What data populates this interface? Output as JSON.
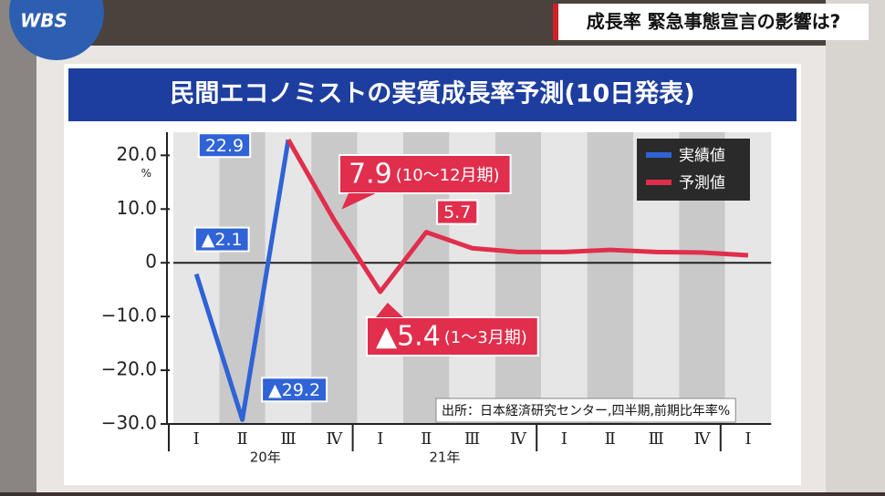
{
  "header": {
    "logo": "WBS",
    "headline": "成長率 緊急事態宣言の影響は?"
  },
  "chart_data": {
    "type": "line",
    "title": "民間エコノミストの実質成長率予測(10日発表)",
    "unit": "%",
    "source": "出所：日本経済研究センター,四半期,前期比年率%",
    "categories": [
      "Ⅰ",
      "Ⅱ",
      "Ⅲ",
      "Ⅳ",
      "Ⅰ",
      "Ⅱ",
      "Ⅲ",
      "Ⅳ",
      "Ⅰ",
      "Ⅱ",
      "Ⅲ",
      "Ⅳ",
      "Ⅰ"
    ],
    "year_labels": [
      "20年",
      "21年"
    ],
    "annotations": [
      "(10～12月期)",
      "(1～3月期)"
    ],
    "series": [
      {
        "name": "実績値",
        "color": "#2f63d6",
        "values": [
          -2.1,
          -29.2,
          22.9,
          null,
          null,
          null,
          null,
          null,
          null,
          null,
          null,
          null,
          null
        ],
        "value_labels": [
          "▲2.1",
          "▲29.2",
          "22.9",
          null,
          null,
          null,
          null,
          null,
          null,
          null,
          null,
          null,
          null
        ]
      },
      {
        "name": "予測値",
        "color": "#e02e4c",
        "values": [
          null,
          null,
          22.9,
          7.9,
          -5.4,
          5.7,
          2.7,
          2.0,
          2.0,
          2.4,
          2.0,
          1.9,
          1.4
        ],
        "value_labels": [
          null,
          null,
          null,
          "7.9",
          "▲5.4",
          "5.7",
          null,
          null,
          null,
          null,
          null,
          null,
          null
        ]
      }
    ],
    "ylim": [
      -30,
      24.3
    ],
    "yticks": [
      {
        "value": 20,
        "label": "20.0"
      },
      {
        "value": 10,
        "label": "10.0"
      },
      0,
      {
        "value": -10,
        "label": "−10.0"
      },
      {
        "value": -20,
        "label": "−20.0"
      },
      {
        "value": -30,
        "label": "−30.0"
      }
    ],
    "legend": "top-right"
  }
}
